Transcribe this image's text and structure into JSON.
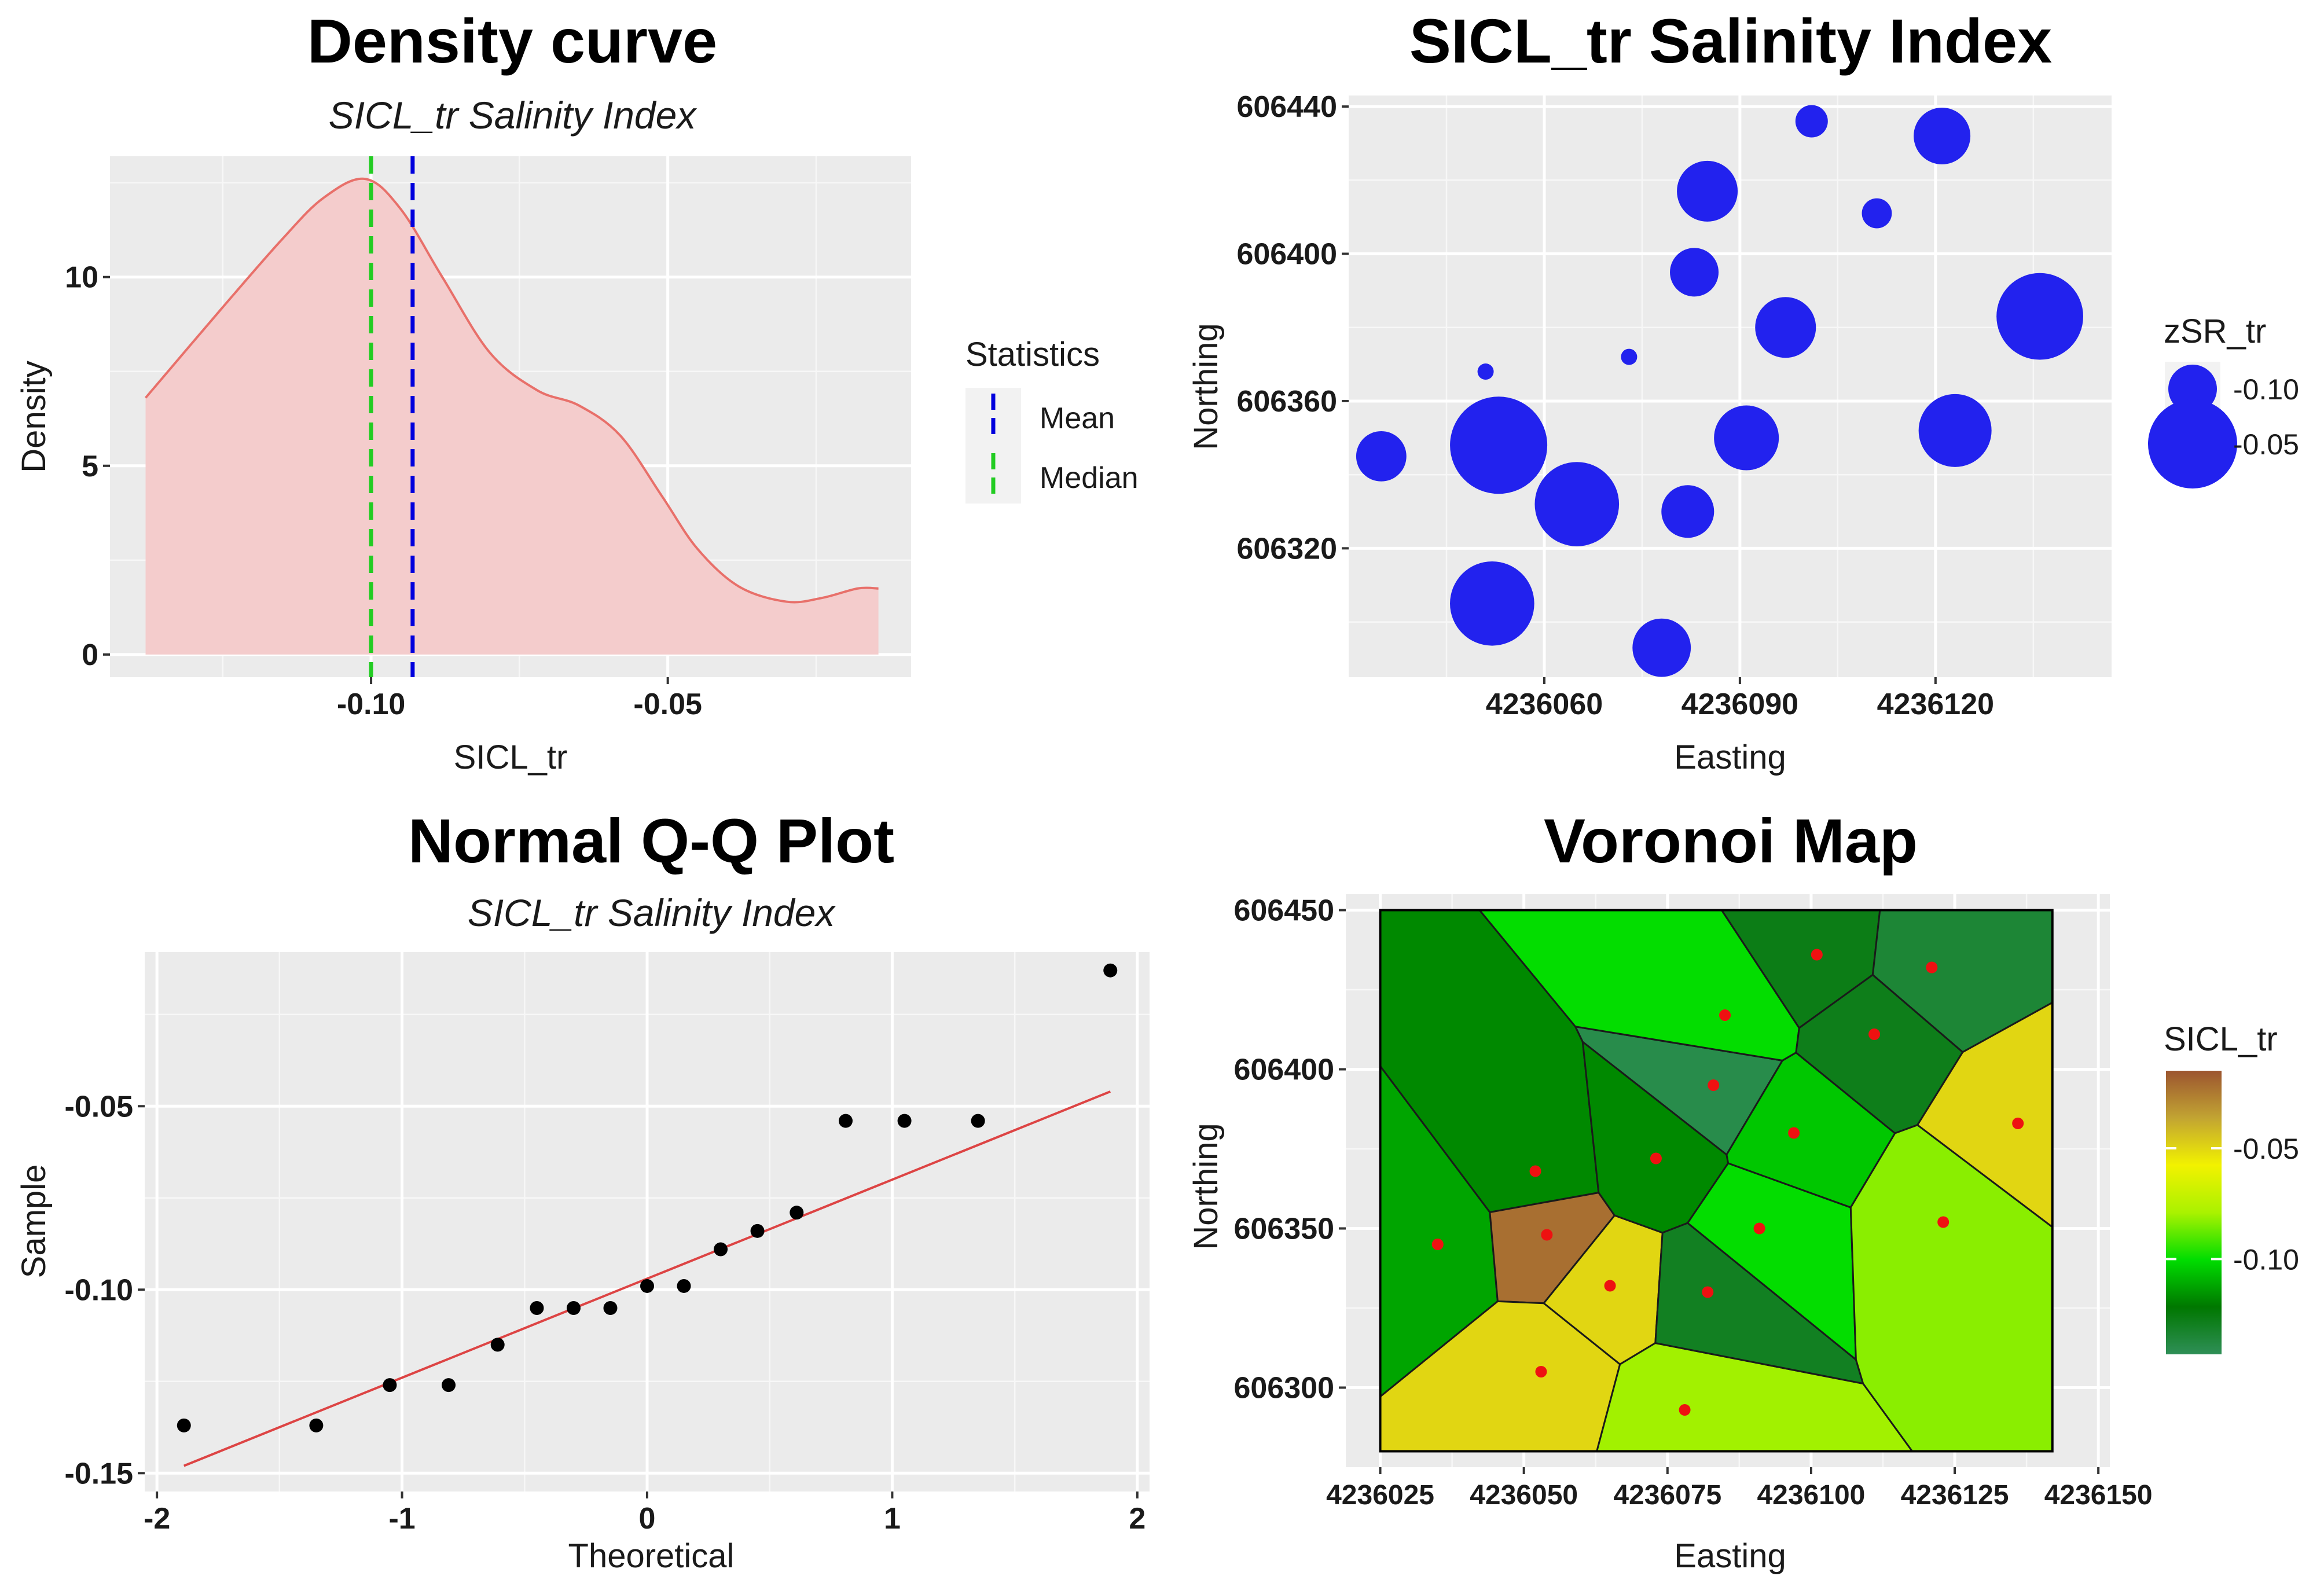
{
  "chart_data": [
    {
      "type": "area",
      "title": "Density curve",
      "subtitle": "SICL_tr Salinity Index",
      "xlabel": "SICL_tr",
      "ylabel": "Density",
      "xlim": [
        -0.144,
        -0.009
      ],
      "ylim": [
        -0.6,
        13.2
      ],
      "x_ticks": [
        -0.1,
        -0.05
      ],
      "x_tick_labels": [
        "-0.10",
        "-0.05"
      ],
      "y_ticks": [
        0,
        5,
        10
      ],
      "y_tick_labels": [
        "0",
        "5",
        "10"
      ],
      "x": [
        -0.138,
        -0.125,
        -0.115,
        -0.108,
        -0.101,
        -0.095,
        -0.088,
        -0.08,
        -0.072,
        -0.065,
        -0.058,
        -0.051,
        -0.045,
        -0.038,
        -0.03,
        -0.024,
        -0.018,
        -0.0145
      ],
      "y": [
        6.8,
        9.2,
        11.0,
        12.1,
        12.6,
        11.8,
        10.0,
        8.0,
        7.0,
        6.6,
        5.8,
        4.2,
        2.8,
        1.8,
        1.4,
        1.5,
        1.75,
        1.75
      ],
      "fill_color": "#f4cccc",
      "line_color": "#e8706a",
      "statistics": {
        "legend_title": "Statistics",
        "legend_position": "right",
        "items": [
          {
            "name": "Mean",
            "value": -0.093,
            "color": "#0000dd"
          },
          {
            "name": "Median",
            "value": -0.1,
            "color": "#22cc22"
          }
        ]
      },
      "grid": true
    },
    {
      "type": "scatter",
      "title": "SICL_tr Salinity Index",
      "xlabel": "Easting",
      "ylabel": "Northing",
      "xlim": [
        4236030,
        4236147
      ],
      "ylim": [
        606285,
        606443
      ],
      "x_ticks": [
        4236060,
        4236090,
        4236120
      ],
      "x_tick_labels": [
        "4236060",
        "4236090",
        "4236120"
      ],
      "y_ticks": [
        606320,
        606360,
        606400,
        606440
      ],
      "y_tick_labels": [
        "606320",
        "606360",
        "606400",
        "606440"
      ],
      "point_color": "#2222ee",
      "points": [
        {
          "x": 4236035,
          "y": 606345,
          "z": -0.098
        },
        {
          "x": 4236051,
          "y": 606368,
          "z": -0.14
        },
        {
          "x": 4236053,
          "y": 606348,
          "z": -0.04
        },
        {
          "x": 4236052,
          "y": 606305,
          "z": -0.056
        },
        {
          "x": 4236065,
          "y": 606332,
          "z": -0.056
        },
        {
          "x": 4236073,
          "y": 606372,
          "z": -0.14
        },
        {
          "x": 4236078,
          "y": 606293,
          "z": -0.088
        },
        {
          "x": 4236082,
          "y": 606330,
          "z": -0.095
        },
        {
          "x": 4236083,
          "y": 606395,
          "z": -0.1
        },
        {
          "x": 4236085,
          "y": 606417,
          "z": -0.085
        },
        {
          "x": 4236091,
          "y": 606350,
          "z": -0.08
        },
        {
          "x": 4236097,
          "y": 606380,
          "z": -0.085
        },
        {
          "x": 4236101,
          "y": 606436,
          "z": -0.12
        },
        {
          "x": 4236111,
          "y": 606411,
          "z": -0.123
        },
        {
          "x": 4236121,
          "y": 606432,
          "z": -0.09
        },
        {
          "x": 4236123,
          "y": 606352,
          "z": -0.07
        },
        {
          "x": 4236136,
          "y": 606383,
          "z": -0.053
        }
      ],
      "legend": {
        "title": "zSR_tr",
        "position": "right",
        "items": [
          {
            "label": "-0.10",
            "z": -0.1
          },
          {
            "label": "-0.05",
            "z": -0.05
          }
        ]
      },
      "grid": true
    },
    {
      "type": "scatter",
      "title": "Normal Q-Q Plot",
      "subtitle": "SICL_tr Salinity Index",
      "xlabel": "Theoretical",
      "ylabel": "Sample",
      "xlim": [
        -2.05,
        2.05
      ],
      "ylim": [
        -0.155,
        -0.008
      ],
      "x_ticks": [
        -2,
        -1,
        0,
        1,
        2
      ],
      "x_tick_labels": [
        "-2",
        "-1",
        "0",
        "1",
        "2"
      ],
      "y_ticks": [
        -0.15,
        -0.1,
        -0.05
      ],
      "y_tick_labels": [
        "-0.15",
        "-0.10",
        "-0.05"
      ],
      "x": [
        -1.89,
        -1.35,
        -1.05,
        -0.81,
        -0.61,
        -0.45,
        -0.3,
        -0.15,
        0.0,
        0.15,
        0.3,
        0.45,
        0.61,
        0.81,
        1.05,
        1.35,
        1.89
      ],
      "y": [
        -0.137,
        -0.137,
        -0.126,
        -0.126,
        -0.115,
        -0.105,
        -0.105,
        -0.105,
        -0.099,
        -0.099,
        -0.089,
        -0.084,
        -0.079,
        -0.054,
        -0.054,
        -0.054,
        -0.013
      ],
      "point_color": "#000000",
      "reference_line": {
        "x": [
          -1.89,
          1.89
        ],
        "y": [
          -0.148,
          -0.046
        ],
        "color": "#dd4444"
      },
      "grid": true
    },
    {
      "type": "heatmap",
      "title": "Voronoi Map",
      "xlabel": "Easting",
      "ylabel": "Northing",
      "xlim": [
        4236019,
        4236152
      ],
      "ylim": [
        606275,
        606455
      ],
      "x_ticks": [
        4236025,
        4236050,
        4236075,
        4236100,
        4236125,
        4236150
      ],
      "x_tick_labels": [
        "4236025",
        "4236050",
        "4236075",
        "4236100",
        "4236125",
        "4236150"
      ],
      "y_ticks": [
        606300,
        606350,
        606400,
        606450
      ],
      "y_tick_labels": [
        "606300",
        "606350",
        "606400",
        "606450"
      ],
      "point_color": "#ee1111",
      "sites": [
        {
          "x": 4236035,
          "y": 606345,
          "v": -0.112
        },
        {
          "x": 4236052,
          "y": 606368,
          "v": -0.118
        },
        {
          "x": 4236054,
          "y": 606348,
          "v": -0.022
        },
        {
          "x": 4236053,
          "y": 606305,
          "v": -0.05
        },
        {
          "x": 4236065,
          "y": 606332,
          "v": -0.05
        },
        {
          "x": 4236073,
          "y": 606372,
          "v": -0.118
        },
        {
          "x": 4236078,
          "y": 606293,
          "v": -0.08
        },
        {
          "x": 4236082,
          "y": 606330,
          "v": -0.13
        },
        {
          "x": 4236083,
          "y": 606395,
          "v": -0.14
        },
        {
          "x": 4236085,
          "y": 606417,
          "v": -0.1
        },
        {
          "x": 4236091,
          "y": 606350,
          "v": -0.1
        },
        {
          "x": 4236097,
          "y": 606380,
          "v": -0.105
        },
        {
          "x": 4236101,
          "y": 606436,
          "v": -0.127
        },
        {
          "x": 4236111,
          "y": 606411,
          "v": -0.128
        },
        {
          "x": 4236121,
          "y": 606432,
          "v": -0.135
        },
        {
          "x": 4236123,
          "y": 606352,
          "v": -0.083
        },
        {
          "x": 4236136,
          "y": 606383,
          "v": -0.05
        }
      ],
      "legend": {
        "title": "SICL_tr",
        "position": "right",
        "ticks": [
          -0.1,
          -0.05
        ],
        "tick_labels": [
          "-0.10",
          "-0.05"
        ],
        "range": [
          -0.143,
          -0.015
        ],
        "colors_bottom_to_top": [
          "#2f8f57",
          "#007700",
          "#00dd00",
          "#aaf200",
          "#f2f200",
          "#c2a432",
          "#9c5530"
        ]
      },
      "grid": true
    }
  ]
}
